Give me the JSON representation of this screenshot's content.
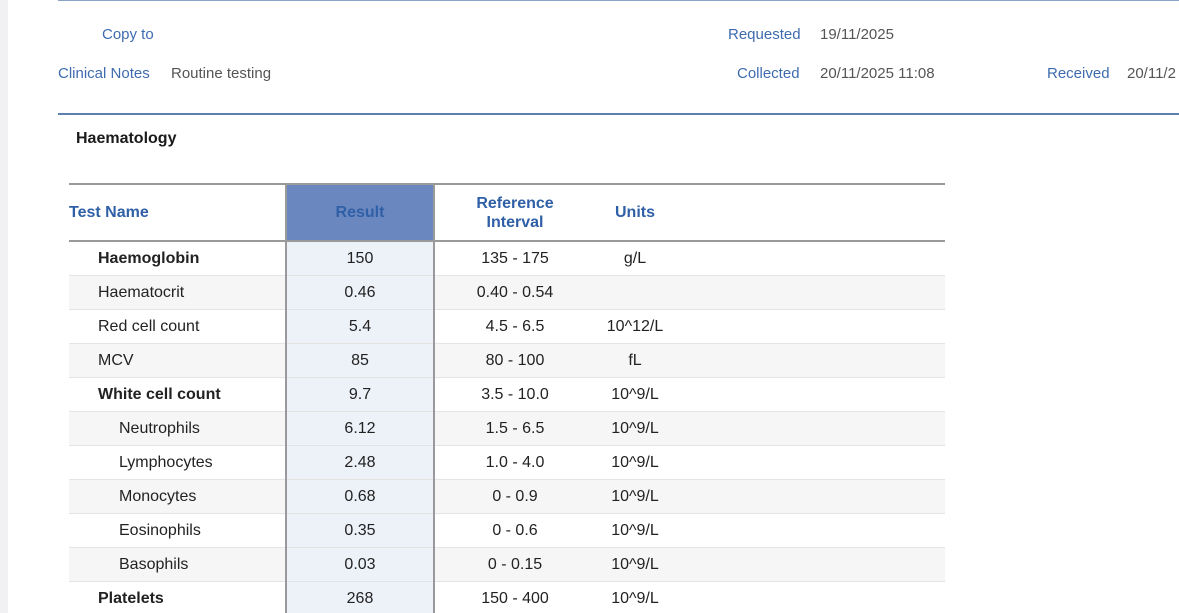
{
  "header": {
    "copy_to_label": "Copy to",
    "clinical_notes_label": "Clinical Notes",
    "clinical_notes_value": "Routine testing",
    "requested_label": "Requested",
    "requested_value": "19/11/2025",
    "collected_label": "Collected",
    "collected_value": "20/11/2025 11:08",
    "received_label": "Received",
    "received_value": "20/11/2"
  },
  "section": {
    "title": "Haematology"
  },
  "table": {
    "headers": {
      "test_name": "Test Name",
      "result": "Result",
      "reference_line1": "Reference",
      "reference_line2": "Interval",
      "units": "Units"
    },
    "rows": [
      {
        "name": "Haemoglobin",
        "result": "150",
        "ref": "135 - 175",
        "units": "g/L"
      },
      {
        "name": "Haematocrit",
        "result": "0.46",
        "ref": "0.40 - 0.54",
        "units": ""
      },
      {
        "name": "Red cell count",
        "result": "5.4",
        "ref": "4.5 - 6.5",
        "units": "10^12/L"
      },
      {
        "name": "MCV",
        "result": "85",
        "ref": "80 - 100",
        "units": "fL"
      },
      {
        "name": "White cell count",
        "result": "9.7",
        "ref": "3.5 - 10.0",
        "units": "10^9/L"
      },
      {
        "name": "Neutrophils",
        "result": "6.12",
        "ref": "1.5 - 6.5",
        "units": "10^9/L"
      },
      {
        "name": "Lymphocytes",
        "result": "2.48",
        "ref": "1.0 - 4.0",
        "units": "10^9/L"
      },
      {
        "name": "Monocytes",
        "result": "0.68",
        "ref": "0 - 0.9",
        "units": "10^9/L"
      },
      {
        "name": "Eosinophils",
        "result": "0.35",
        "ref": "0 - 0.6",
        "units": "10^9/L"
      },
      {
        "name": "Basophils",
        "result": "0.03",
        "ref": "0 - 0.15",
        "units": "10^9/L"
      },
      {
        "name": "Platelets",
        "result": "268",
        "ref": "150 - 400",
        "units": "10^9/L"
      }
    ]
  },
  "colors": {
    "label_blue": "#3e6bb0",
    "header_blue": "#2f5fa6",
    "result_header_bg": "#6a88bf",
    "result_column_bg": "#edf1f8"
  }
}
